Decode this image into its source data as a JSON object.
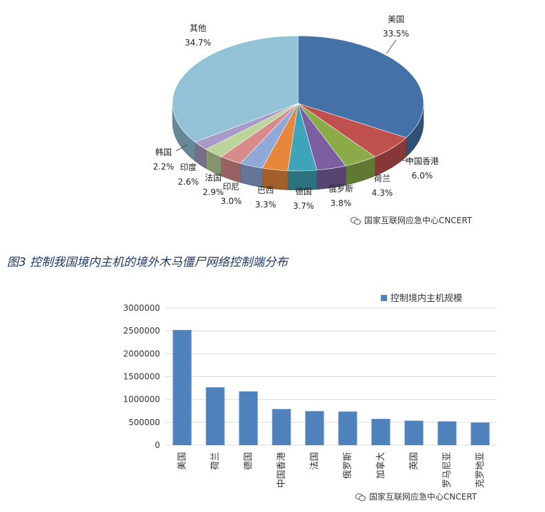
{
  "chart_data": [
    {
      "type": "pie",
      "title": "",
      "slices": [
        {
          "label": "美国",
          "value": 33.5,
          "text": "33.5%",
          "color": "#4472a8"
        },
        {
          "label": "中国香港",
          "value": 6.0,
          "text": "6.0%",
          "color": "#c0504d"
        },
        {
          "label": "荷兰",
          "value": 4.3,
          "text": "4.3%",
          "color": "#8aab48"
        },
        {
          "label": "俄罗斯",
          "value": 3.8,
          "text": "3.8%",
          "color": "#7b5fa0"
        },
        {
          "label": "德国",
          "value": 3.7,
          "text": "3.7%",
          "color": "#3fa4b9"
        },
        {
          "label": "巴西",
          "value": 3.3,
          "text": "3.3%",
          "color": "#e8873a"
        },
        {
          "label": "印尼",
          "value": 3.0,
          "text": "3.0%",
          "color": "#8fa9d8"
        },
        {
          "label": "法国",
          "value": 2.9,
          "text": "2.9%",
          "color": "#d88b8a"
        },
        {
          "label": "印度",
          "value": 2.6,
          "text": "2.6%",
          "color": "#bcd49a"
        },
        {
          "label": "韩国",
          "value": 2.2,
          "text": "2.2%",
          "color": "#a99bc7"
        },
        {
          "label": "其他",
          "value": 34.7,
          "text": "34.7%",
          "color": "#93c2d6"
        }
      ]
    },
    {
      "type": "bar",
      "title": "",
      "categories": [
        "美国",
        "荷兰",
        "德国",
        "中国香港",
        "法国",
        "俄罗斯",
        "加拿大",
        "英国",
        "罗马尼亚",
        "克罗地亚"
      ],
      "series": [
        {
          "name": "控制境内主机规模",
          "values": [
            2520000,
            1265000,
            1175000,
            790000,
            745000,
            735000,
            575000,
            535000,
            520000,
            495000
          ],
          "color": "#4f81bd"
        }
      ],
      "yticks": [
        "0",
        "500000",
        "1000000",
        "1500000",
        "2000000",
        "2500000",
        "3000000"
      ],
      "ylim": [
        0,
        3000000
      ],
      "legend_position": "top-right",
      "grid": true
    }
  ],
  "caption": "图3 控制我国境内主机的境外木马僵尸网络控制端分布",
  "watermark": "国家互联网应急中心CNCERT"
}
